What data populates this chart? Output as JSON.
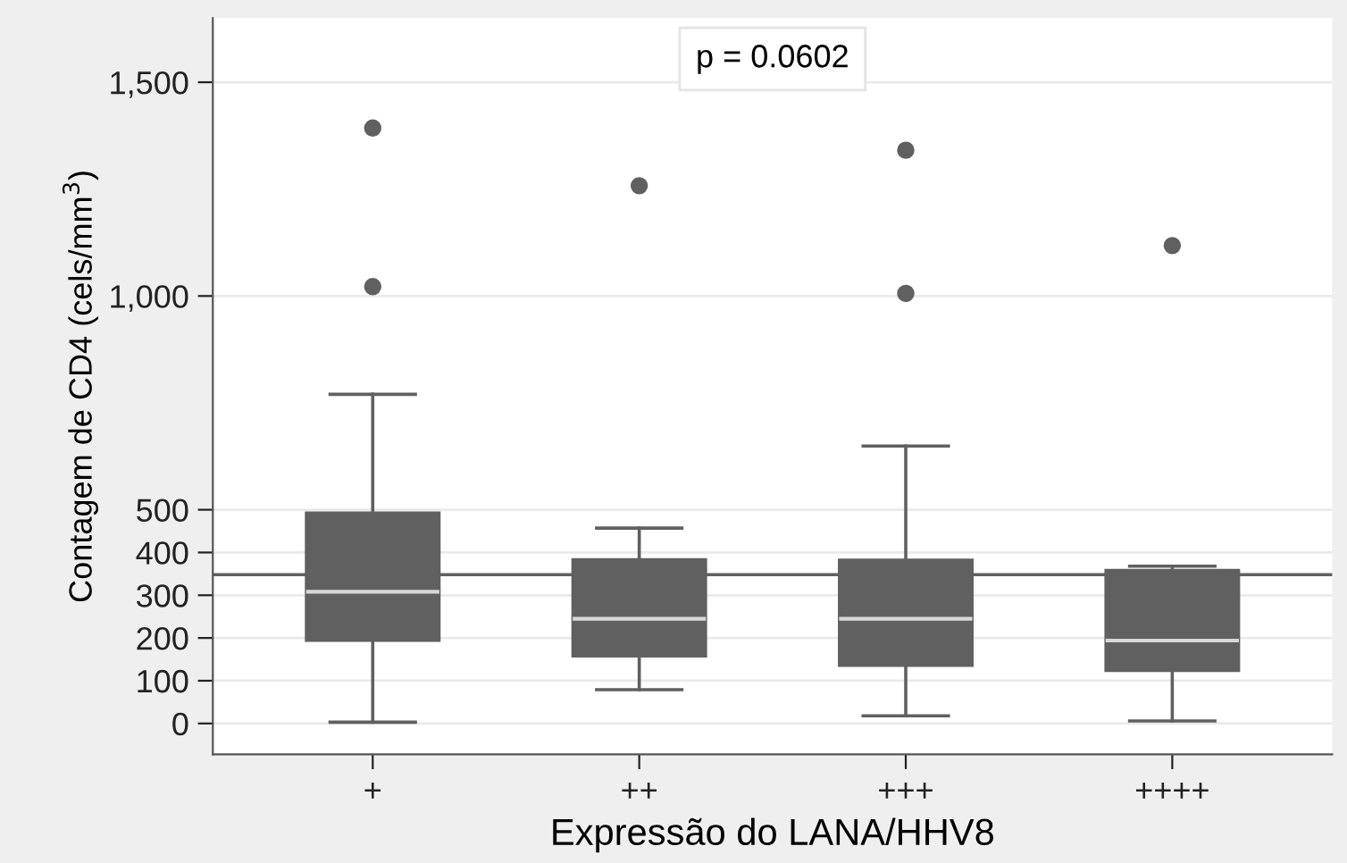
{
  "chart_data": {
    "type": "box",
    "xlabel": "Expressão do LANA/HHV8",
    "ylabel": "Contagem de CD4 (cels/mm$^{3}$)",
    "categories": [
      "+",
      "++",
      "+++",
      "++++"
    ],
    "color": "#606060",
    "boxes": [
      {
        "low": 3,
        "q1": 194,
        "median": 308,
        "q3": 493,
        "high": 770,
        "outliers": [
          1022,
          1393
        ]
      },
      {
        "low": 79,
        "q1": 157,
        "median": 245,
        "q3": 384,
        "high": 457,
        "outliers": [
          1258
        ]
      },
      {
        "low": 18,
        "q1": 135,
        "median": 245,
        "q3": 383,
        "high": 649,
        "outliers": [
          1006,
          1341
        ]
      },
      {
        "low": 6,
        "q1": 123,
        "median": 194,
        "q3": 359,
        "high": 368,
        "outliers": [
          1118
        ]
      }
    ],
    "ylim": [
      -72,
      1650
    ],
    "yticks": [
      0,
      100,
      200,
      300,
      400,
      500,
      {
        "value": 1000,
        "label": "1,000"
      },
      {
        "value": 1500,
        "label": "1,500"
      }
    ],
    "grid": "y",
    "ref_lines": [
      {
        "axis": "y",
        "value": 348,
        "color": "#606060"
      }
    ],
    "annotations": [
      "p = 0.0602"
    ]
  }
}
